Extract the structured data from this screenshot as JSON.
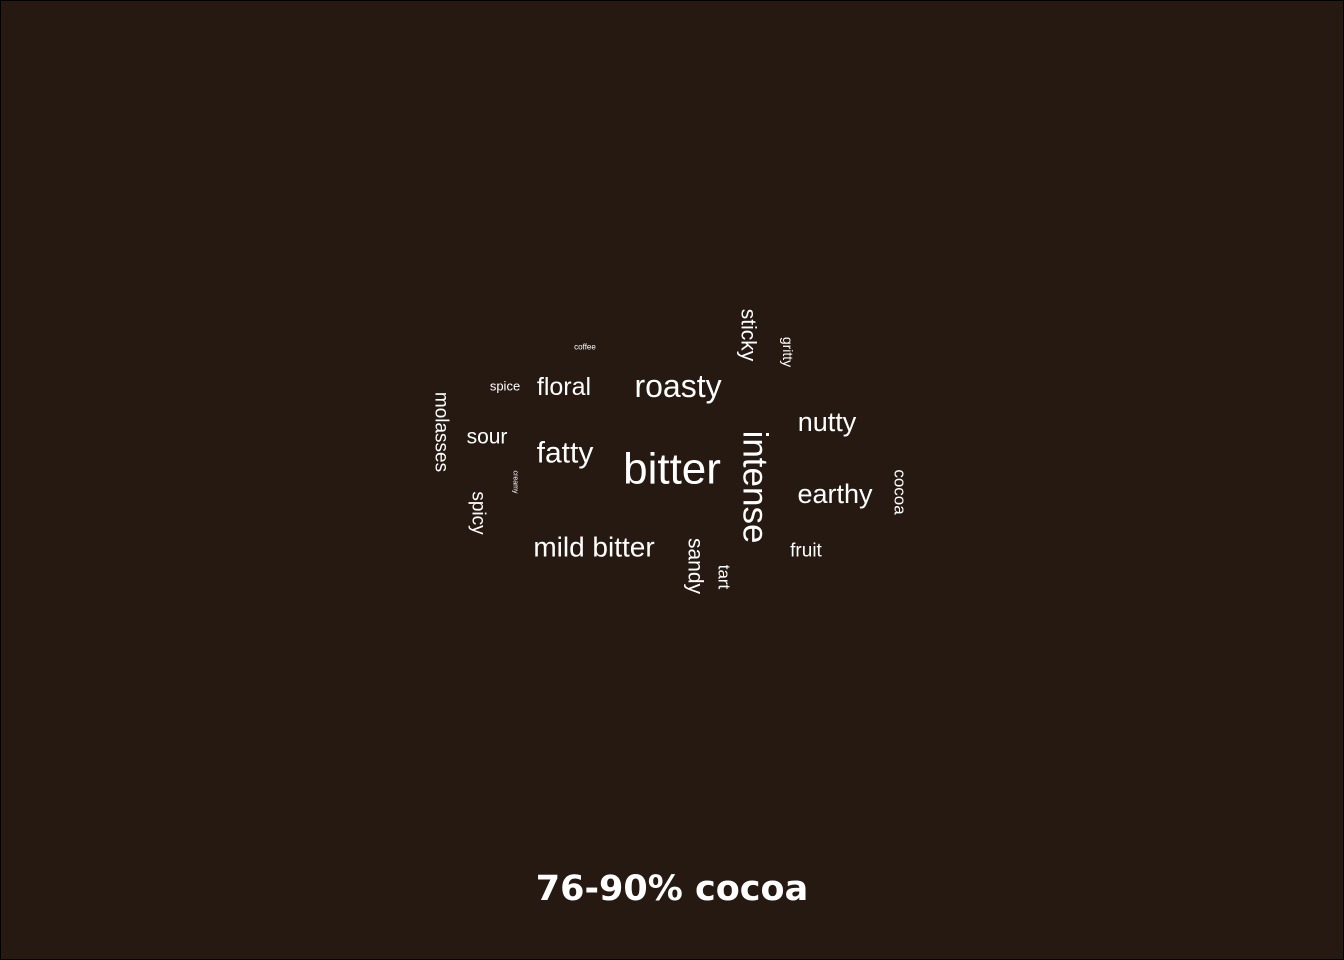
{
  "caption": "76-90% cocoa",
  "colors": {
    "background": "#261911",
    "text": "#ffffff"
  },
  "chart_data": {
    "type": "wordcloud",
    "title": "",
    "words": [
      {
        "text": "bitter",
        "weight": 100,
        "orientation": "horizontal"
      },
      {
        "text": "intense",
        "weight": 83,
        "orientation": "vertical"
      },
      {
        "text": "roasty",
        "weight": 78,
        "orientation": "horizontal"
      },
      {
        "text": "fatty",
        "weight": 72,
        "orientation": "horizontal"
      },
      {
        "text": "mild bitter",
        "weight": 70,
        "orientation": "horizontal"
      },
      {
        "text": "earthy",
        "weight": 66,
        "orientation": "horizontal"
      },
      {
        "text": "nutty",
        "weight": 65,
        "orientation": "horizontal"
      },
      {
        "text": "floral",
        "weight": 60,
        "orientation": "horizontal"
      },
      {
        "text": "sticky",
        "weight": 57,
        "orientation": "vertical"
      },
      {
        "text": "sandy",
        "weight": 56,
        "orientation": "vertical"
      },
      {
        "text": "sour",
        "weight": 52,
        "orientation": "horizontal"
      },
      {
        "text": "molasses",
        "weight": 50,
        "orientation": "vertical"
      },
      {
        "text": "spicy",
        "weight": 49,
        "orientation": "vertical"
      },
      {
        "text": "fruit",
        "weight": 45,
        "orientation": "horizontal"
      },
      {
        "text": "cocoa",
        "weight": 44,
        "orientation": "vertical"
      },
      {
        "text": "tart",
        "weight": 42,
        "orientation": "vertical"
      },
      {
        "text": "gritty",
        "weight": 38,
        "orientation": "vertical"
      },
      {
        "text": "spice",
        "weight": 33,
        "orientation": "horizontal"
      },
      {
        "text": "coffee",
        "weight": 18,
        "orientation": "horizontal"
      },
      {
        "text": "creamy",
        "weight": 14,
        "orientation": "vertical"
      }
    ]
  }
}
